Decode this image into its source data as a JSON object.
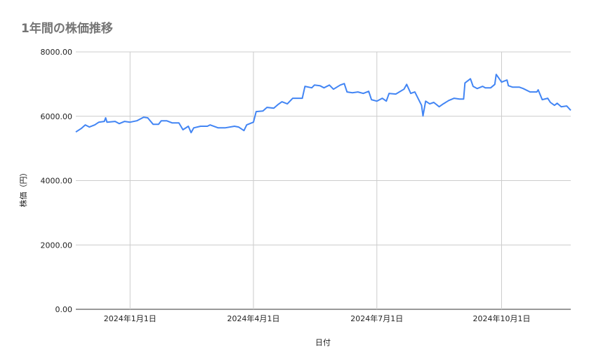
{
  "chart_data": {
    "type": "line",
    "title": "1年間の株価推移",
    "xlabel": "日付",
    "ylabel": "株価（円）",
    "ylim": [
      0,
      8000
    ],
    "xlim": [
      "2023-11-22",
      "2024-11-21"
    ],
    "grid": true,
    "y_ticks": [
      "0.00",
      "2000.00",
      "4000.00",
      "6000.00",
      "8000.00"
    ],
    "x_ticks": [
      {
        "date": "2024-01-01",
        "label": "2024年1月1日"
      },
      {
        "date": "2024-04-01",
        "label": "2024年4月1日"
      },
      {
        "date": "2024-07-01",
        "label": "2024年7月1日"
      },
      {
        "date": "2024-10-01",
        "label": "2024年10月1日"
      }
    ],
    "line_color": "#4285f4",
    "points": [
      [
        "2023-11-22",
        5510
      ],
      [
        "2023-11-26",
        5620
      ],
      [
        "2023-11-29",
        5730
      ],
      [
        "2023-12-02",
        5665
      ],
      [
        "2023-12-06",
        5730
      ],
      [
        "2023-12-09",
        5815
      ],
      [
        "2023-12-13",
        5840
      ],
      [
        "2023-12-14",
        5950
      ],
      [
        "2023-12-15",
        5815
      ],
      [
        "2023-12-21",
        5840
      ],
      [
        "2023-12-24",
        5770
      ],
      [
        "2023-12-28",
        5840
      ],
      [
        "2024-01-01",
        5815
      ],
      [
        "2024-01-06",
        5860
      ],
      [
        "2024-01-11",
        5970
      ],
      [
        "2024-01-14",
        5950
      ],
      [
        "2024-01-18",
        5750
      ],
      [
        "2024-01-22",
        5750
      ],
      [
        "2024-01-24",
        5860
      ],
      [
        "2024-01-28",
        5860
      ],
      [
        "2024-02-01",
        5795
      ],
      [
        "2024-02-06",
        5795
      ],
      [
        "2024-02-09",
        5580
      ],
      [
        "2024-02-13",
        5690
      ],
      [
        "2024-02-15",
        5490
      ],
      [
        "2024-02-17",
        5640
      ],
      [
        "2024-02-22",
        5690
      ],
      [
        "2024-02-27",
        5690
      ],
      [
        "2024-02-29",
        5730
      ],
      [
        "2024-03-06",
        5640
      ],
      [
        "2024-03-11",
        5640
      ],
      [
        "2024-03-18",
        5690
      ],
      [
        "2024-03-21",
        5665
      ],
      [
        "2024-03-25",
        5555
      ],
      [
        "2024-03-27",
        5730
      ],
      [
        "2024-04-01",
        5815
      ],
      [
        "2024-04-03",
        6145
      ],
      [
        "2024-04-08",
        6165
      ],
      [
        "2024-04-11",
        6275
      ],
      [
        "2024-04-16",
        6250
      ],
      [
        "2024-04-19",
        6360
      ],
      [
        "2024-04-22",
        6450
      ],
      [
        "2024-04-26",
        6385
      ],
      [
        "2024-04-30",
        6560
      ],
      [
        "2024-05-07",
        6560
      ],
      [
        "2024-05-09",
        6930
      ],
      [
        "2024-05-14",
        6885
      ],
      [
        "2024-05-16",
        6970
      ],
      [
        "2024-05-20",
        6950
      ],
      [
        "2024-05-23",
        6885
      ],
      [
        "2024-05-27",
        6970
      ],
      [
        "2024-05-30",
        6840
      ],
      [
        "2024-06-04",
        6970
      ],
      [
        "2024-06-07",
        7015
      ],
      [
        "2024-06-09",
        6755
      ],
      [
        "2024-06-13",
        6730
      ],
      [
        "2024-06-17",
        6755
      ],
      [
        "2024-06-21",
        6710
      ],
      [
        "2024-06-25",
        6775
      ],
      [
        "2024-06-27",
        6515
      ],
      [
        "2024-07-01",
        6470
      ],
      [
        "2024-07-05",
        6560
      ],
      [
        "2024-07-08",
        6470
      ],
      [
        "2024-07-10",
        6710
      ],
      [
        "2024-07-15",
        6690
      ],
      [
        "2024-07-21",
        6840
      ],
      [
        "2024-07-23",
        6990
      ],
      [
        "2024-07-26",
        6710
      ],
      [
        "2024-07-29",
        6755
      ],
      [
        "2024-08-03",
        6340
      ],
      [
        "2024-08-04",
        6010
      ],
      [
        "2024-08-06",
        6470
      ],
      [
        "2024-08-09",
        6385
      ],
      [
        "2024-08-12",
        6430
      ],
      [
        "2024-08-16",
        6295
      ],
      [
        "2024-08-19",
        6385
      ],
      [
        "2024-08-23",
        6490
      ],
      [
        "2024-08-27",
        6560
      ],
      [
        "2024-08-31",
        6535
      ],
      [
        "2024-09-03",
        6535
      ],
      [
        "2024-09-04",
        7035
      ],
      [
        "2024-09-08",
        7165
      ],
      [
        "2024-09-10",
        6930
      ],
      [
        "2024-09-13",
        6860
      ],
      [
        "2024-09-17",
        6930
      ],
      [
        "2024-09-19",
        6885
      ],
      [
        "2024-09-23",
        6885
      ],
      [
        "2024-09-26",
        6990
      ],
      [
        "2024-09-27",
        7300
      ],
      [
        "2024-10-01",
        7060
      ],
      [
        "2024-10-05",
        7125
      ],
      [
        "2024-10-06",
        6950
      ],
      [
        "2024-10-09",
        6905
      ],
      [
        "2024-10-14",
        6905
      ],
      [
        "2024-10-17",
        6860
      ],
      [
        "2024-10-22",
        6755
      ],
      [
        "2024-10-27",
        6755
      ],
      [
        "2024-10-28",
        6820
      ],
      [
        "2024-10-31",
        6515
      ],
      [
        "2024-11-04",
        6560
      ],
      [
        "2024-11-06",
        6430
      ],
      [
        "2024-11-09",
        6340
      ],
      [
        "2024-11-11",
        6405
      ],
      [
        "2024-11-14",
        6295
      ],
      [
        "2024-11-18",
        6320
      ],
      [
        "2024-11-21",
        6185
      ]
    ]
  }
}
